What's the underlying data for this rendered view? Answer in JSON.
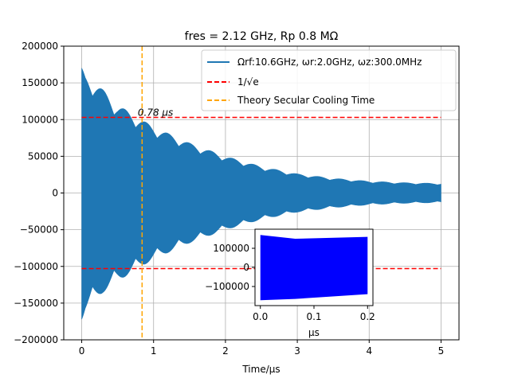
{
  "chart_data": [
    {
      "type": "line",
      "title": "fres = 2.12 GHz, Rp 0.8 MΩ",
      "xlabel": "Time/μs",
      "ylabel": "",
      "xlim": [
        -0.25,
        5.25
      ],
      "ylim": [
        -200000,
        200000
      ],
      "grid": true,
      "x_ticks": [
        0,
        1,
        2,
        3,
        4,
        5
      ],
      "x_tick_labels": [
        "0",
        "1",
        "2",
        "3",
        "4",
        "5"
      ],
      "y_ticks": [
        -200000,
        -150000,
        -100000,
        -50000,
        0,
        50000,
        100000,
        150000,
        200000
      ],
      "y_tick_labels": [
        "−200000",
        "−150000",
        "−100000",
        "−50000",
        "0",
        "50000",
        "100000",
        "150000",
        "200000"
      ],
      "legend_position": "upper-right",
      "series": [
        {
          "name": "Ωrf:10.6GHz, ωr:2.0GHz, ωz:300.0MHz",
          "style": "envelope",
          "color": "#1f77b4",
          "x": [
            0.0,
            0.05,
            0.15,
            0.3,
            0.5,
            0.78,
            1.0,
            1.5,
            2.0,
            2.5,
            3.0,
            3.5,
            4.0,
            4.5,
            5.0
          ],
          "upper": [
            170000,
            160000,
            155000,
            140000,
            120000,
            103000,
            90000,
            68000,
            50000,
            36000,
            26000,
            20000,
            16000,
            14000,
            13000
          ],
          "lower": [
            -172000,
            -160000,
            -150000,
            -135000,
            -120000,
            -103000,
            -90000,
            -68000,
            -50000,
            -36000,
            -26000,
            -20000,
            -16000,
            -14000,
            -13000
          ]
        },
        {
          "name": "1/√e",
          "style": "dashed-hline",
          "color": "#ff0000",
          "y": [
            103000,
            -103000
          ]
        },
        {
          "name": "Theory Secular Cooling Time",
          "style": "dashed-vline",
          "color": "#ffa500",
          "x": 0.84
        }
      ],
      "annotations": [
        {
          "text": "0.78 μs",
          "x": 0.78,
          "y": 103000
        }
      ]
    },
    {
      "type": "area",
      "title": "",
      "xlabel": "μs",
      "xlim": [
        -0.01,
        0.21
      ],
      "ylim": [
        -200000,
        200000
      ],
      "x_ticks": [
        0.0,
        0.1,
        0.2
      ],
      "x_tick_labels": [
        "0.0",
        "0.1",
        "0.2"
      ],
      "y_ticks": [
        -100000,
        0,
        100000
      ],
      "y_tick_labels": [
        "−100000",
        "0",
        "100000"
      ],
      "series": [
        {
          "name": "",
          "color": "#0000ff",
          "x": [
            0.0,
            0.065,
            0.2
          ],
          "upper": [
            170000,
            150000,
            160000
          ],
          "lower": [
            -172000,
            -165000,
            -140000
          ]
        }
      ]
    }
  ]
}
